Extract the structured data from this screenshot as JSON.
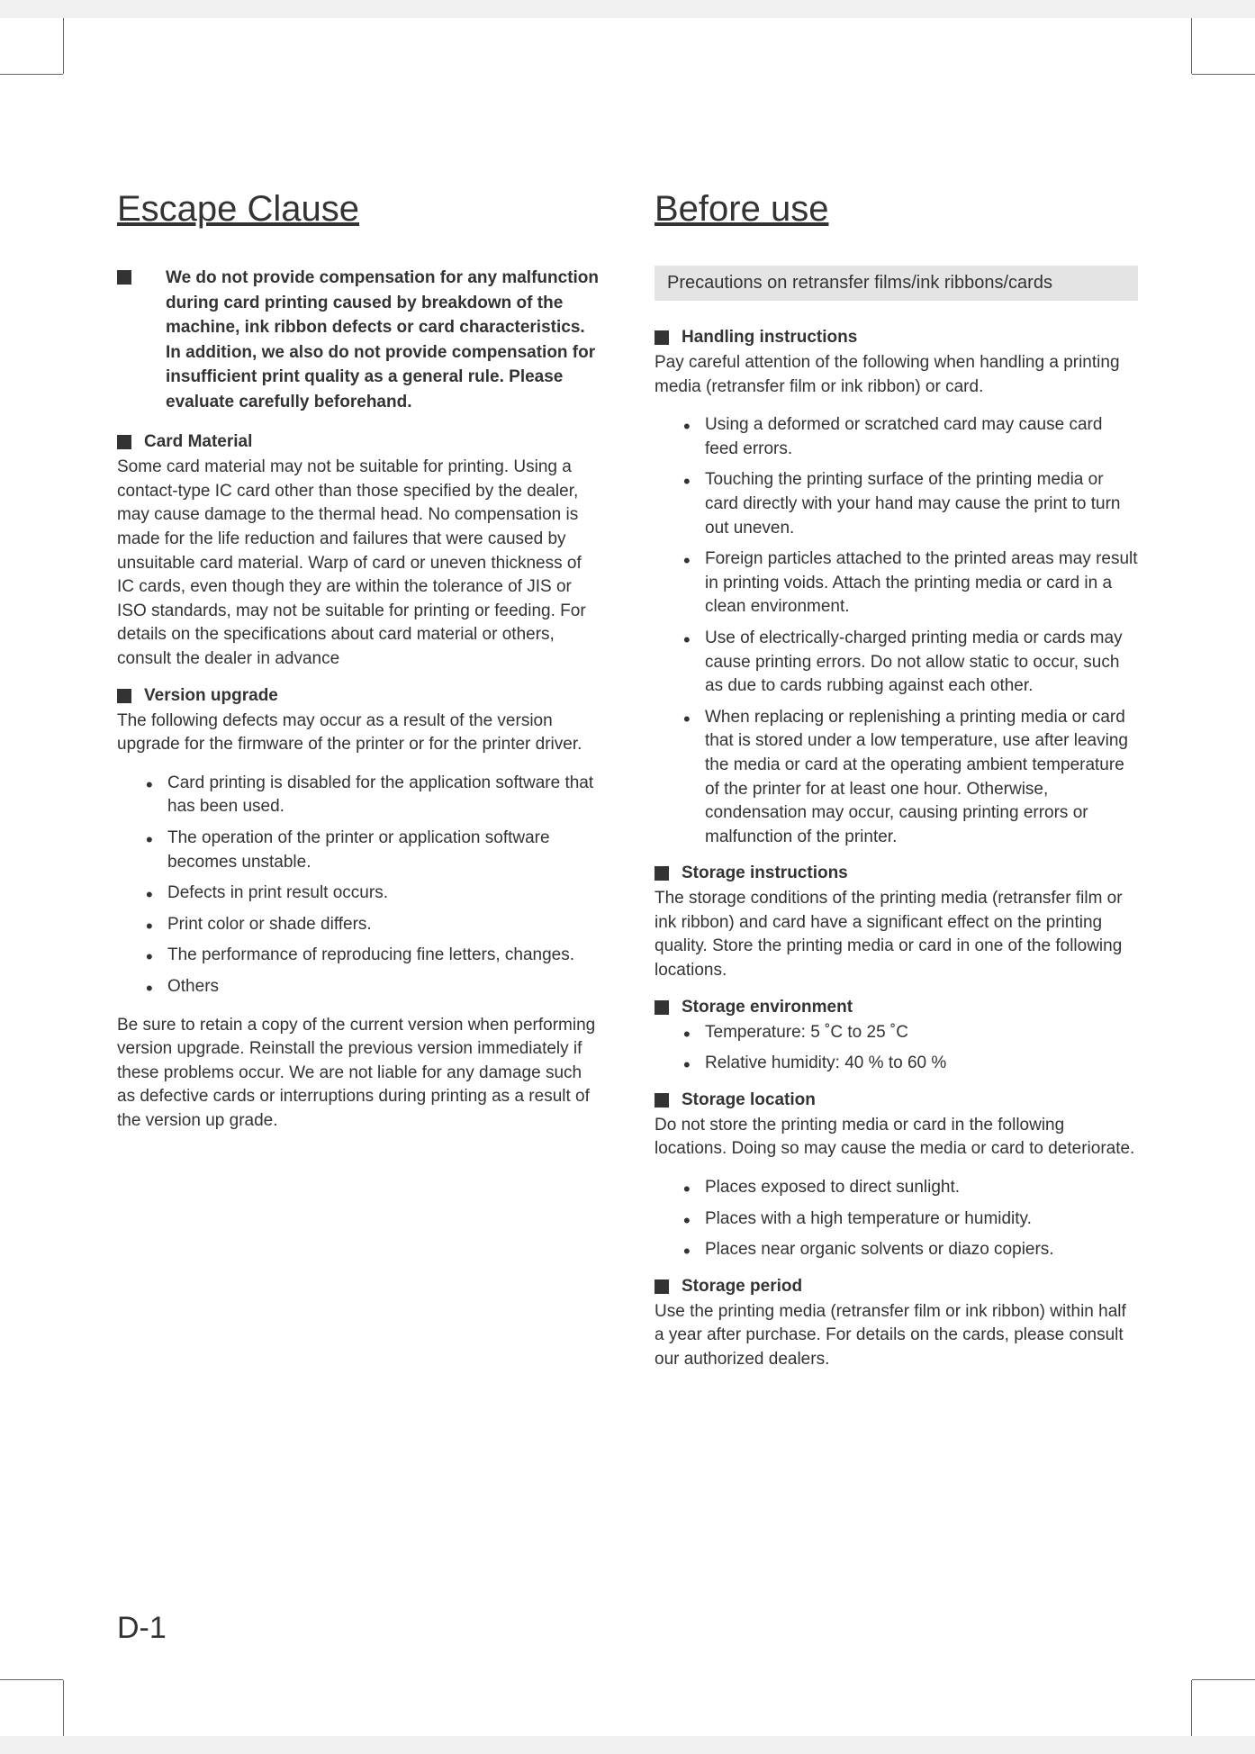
{
  "left": {
    "title": "Escape Clause",
    "intro": "We do not provide compensation for any malfunction during card printing caused by breakdown of the machine, ink ribbon defects or card characteristics. In addition, we also do not provide compensation for insufficient print quality as a general rule. Please evaluate carefully beforehand.",
    "cardMaterial": {
      "heading": "Card Material",
      "body": "Some card material may not be suitable for printing. Using a contact-type IC card other than those specified by the dealer, may cause damage to the thermal head. No compensation is made for the life reduction and failures that were caused by unsuitable card material. Warp of card or uneven thickness of IC cards, even though they are within the tolerance of JIS or ISO standards, may not be suitable for printing or feeding. For details on the specifications about card material or others, consult the dealer in advance"
    },
    "version": {
      "heading": "Version upgrade",
      "body1": "The following defects may occur as a result of the version upgrade for the firmware of the printer or for the printer driver.",
      "items": [
        "Card printing is disabled for the application software that has been used.",
        "The operation of the printer or application software becomes unstable.",
        "Defects in print result occurs.",
        "Print color or shade differs.",
        "The performance of reproducing fine letters, changes.",
        "Others"
      ],
      "body2": "Be sure to retain a copy of the current version when performing version upgrade. Reinstall the previous version immediately if these problems occur. We are not liable for any damage such as defective cards or interruptions during printing as a result of the version up grade."
    }
  },
  "right": {
    "title": "Before use",
    "banner": "Precautions on retransfer films/ink ribbons/cards",
    "handling": {
      "heading": "Handling instructions",
      "body": "Pay careful attention of the following when handling a printing media (retransfer film or ink ribbon) or card.",
      "items": [
        "Using a deformed or scratched card may cause card feed errors.",
        "Touching the printing surface of the printing media or card directly with your hand may cause the print to turn out uneven.",
        "Foreign particles attached to the printed areas may result in printing voids. Attach the printing media or card in a clean environment.",
        "Use of electrically-charged printing media or cards may cause printing errors.  Do not allow static to occur, such as due to cards rubbing against each other.",
        "When replacing or replenishing a printing media or card that is stored under a low temperature, use after leaving the media or card at the operating ambient temperature of the printer for at least one hour. Otherwise, condensation may occur, causing printing errors or malfunction of the printer."
      ]
    },
    "storage": {
      "heading": "Storage instructions",
      "body": "The storage conditions of the printing media (retransfer film or ink ribbon) and card have a significant effect on the printing quality. Store the printing media or card in one of the following locations."
    },
    "env": {
      "heading": "Storage environment",
      "items": [
        "Temperature: 5 ˚C to 25 ˚C",
        "Relative humidity: 40 % to 60 %"
      ]
    },
    "loc": {
      "heading": "Storage location",
      "body": "Do not store the printing media or card in the following locations. Doing so may cause the media or card to deteriorate.",
      "items": [
        "Places exposed to direct sunlight.",
        "Places with a high temperature or humidity.",
        "Places near organic solvents or diazo copiers."
      ]
    },
    "period": {
      "heading": "Storage period",
      "body": "Use the printing media (retransfer film or ink ribbon) within half a year after purchase. For details on the cards, please consult our authorized dealers."
    }
  },
  "pageNumber": "D-1"
}
